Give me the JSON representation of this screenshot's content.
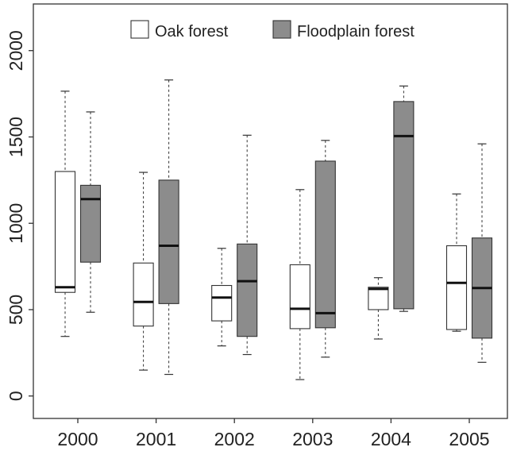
{
  "chart_data": {
    "type": "box",
    "title": "",
    "xlabel": "",
    "ylabel": "",
    "categories": [
      "2000",
      "2001",
      "2002",
      "2003",
      "2004",
      "2005"
    ],
    "ylim": [
      -130,
      2270
    ],
    "y_ticks": [
      0,
      500,
      1000,
      1500,
      2000
    ],
    "grid": false,
    "legend_position": "top-center",
    "series": [
      {
        "name": "Oak forest",
        "fill": "#ffffff",
        "boxes": [
          {
            "whisker_low": 345,
            "q1": 600,
            "median": 630,
            "q3": 1300,
            "whisker_high": 1765
          },
          {
            "whisker_low": 150,
            "q1": 405,
            "median": 545,
            "q3": 770,
            "whisker_high": 1295
          },
          {
            "whisker_low": 290,
            "q1": 435,
            "median": 570,
            "q3": 640,
            "whisker_high": 855
          },
          {
            "whisker_low": 95,
            "q1": 390,
            "median": 505,
            "q3": 760,
            "whisker_high": 1195
          },
          {
            "whisker_low": 330,
            "q1": 500,
            "median": 620,
            "q3": 630,
            "whisker_high": 685
          },
          {
            "whisker_low": 375,
            "q1": 385,
            "median": 655,
            "q3": 870,
            "whisker_high": 1170
          }
        ]
      },
      {
        "name": "Floodplain forest",
        "fill": "#8c8c8c",
        "boxes": [
          {
            "whisker_low": 485,
            "q1": 775,
            "median": 1140,
            "q3": 1220,
            "whisker_high": 1645
          },
          {
            "whisker_low": 125,
            "q1": 535,
            "median": 870,
            "q3": 1250,
            "whisker_high": 1830
          },
          {
            "whisker_low": 240,
            "q1": 345,
            "median": 665,
            "q3": 880,
            "whisker_high": 1510
          },
          {
            "whisker_low": 225,
            "q1": 395,
            "median": 480,
            "q3": 1360,
            "whisker_high": 1480
          },
          {
            "whisker_low": 490,
            "q1": 505,
            "median": 1505,
            "q3": 1705,
            "whisker_high": 1795
          },
          {
            "whisker_low": 195,
            "q1": 335,
            "median": 625,
            "q3": 915,
            "whisker_high": 1460
          }
        ]
      }
    ]
  }
}
